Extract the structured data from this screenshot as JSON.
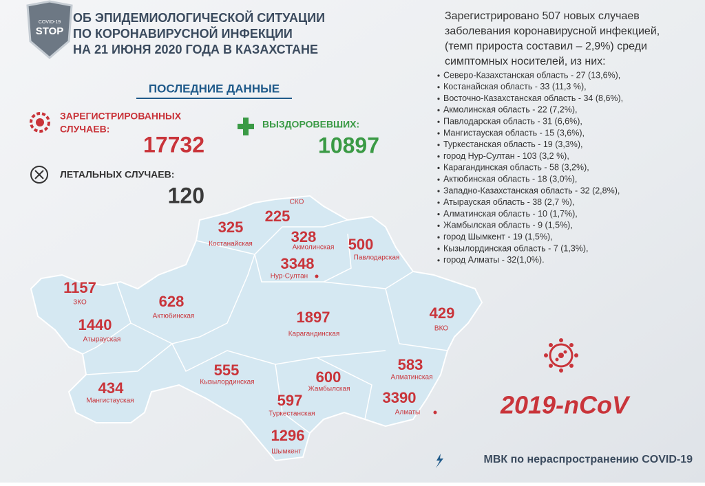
{
  "header": {
    "logo": [
      "COVID-19",
      "STOP"
    ],
    "title": [
      "ОБ ЭПИДЕМИОЛОГИЧЕСКОЙ СИТУАЦИИ",
      "ПО КОРОНАВИРУСНОЙ ИНФЕКЦИИ",
      "НА 21 ИЮНЯ 2020 ГОДА В КАЗАХСТАНЕ"
    ]
  },
  "stats": {
    "section_title": "ПОСЛЕДНИЕ ДАННЫЕ",
    "registered": {
      "label": [
        "ЗАРЕГИСТРИРОВАННЫХ",
        "СЛУЧАЕВ:"
      ],
      "value": 17732
    },
    "recovered": {
      "label": "ВЫЗДОРОВЕВШИХ:",
      "value": 10897
    },
    "deaths": {
      "label": "ЛЕТАЛЬНЫХ СЛУЧАЕВ:",
      "value": 120
    }
  },
  "summary": {
    "intro": [
      "Зарегистрировано 507 новых случаев",
      "заболевания коронавирусной инфекцией,",
      "(темп прироста составил – 2,9%) среди",
      "симптомных носителей, из них:"
    ],
    "items": [
      "Северо-Казахстанская   область - 27 (13,6%),",
      "Костанайская область  - 33 (11,3 %),",
      "Восточно-Казахстанская область - 34 (8,6%),",
      "Акмолинская область - 22 (7,2%),",
      "Павлодарская область - 31 (6,6%),",
      "Мангистауская область - 15 (3,6%),",
      "Туркестанская область - 19 (3,3%),",
      "город Нур-Султан - 103 (3,2 %),",
      "Карагандинская область - 58 (3,2%),",
      "Актюбинская область - 18 (3,0%),",
      "Западно-Казахстанская область - 32 (2,8%),",
      "Атырауская область - 38 (2,7 %),",
      "Алматинская область  - 10 (1,7%),",
      "Жамбылская область - 9 (1,5%),",
      "город Шымкент - 19 (1,5%),",
      "Кызылординская область - 7 (1,3%),",
      "город Алматы - 32(1,0%)."
    ]
  },
  "regions": [
    {
      "name": "СКО",
      "value": 225
    },
    {
      "name": "Костанайская",
      "value": 325
    },
    {
      "name": "Акмолинская",
      "value": 328
    },
    {
      "name": "Павлодарская",
      "value": 500
    },
    {
      "name": "Нур-Султан",
      "value": 3348
    },
    {
      "name": "ЗКО",
      "value": 1157
    },
    {
      "name": "Актюбинская",
      "value": 628
    },
    {
      "name": "Карагандинская",
      "value": 1897
    },
    {
      "name": "ВКО",
      "value": 429
    },
    {
      "name": "Атырауская",
      "value": 1440
    },
    {
      "name": "Алматинская",
      "value": 583
    },
    {
      "name": "Кызылординская",
      "value": 555
    },
    {
      "name": "Жамбылская",
      "value": 600
    },
    {
      "name": "Мангистауская",
      "value": 434
    },
    {
      "name": "Туркестанская",
      "value": 597
    },
    {
      "name": "Алматы",
      "value": 3390
    },
    {
      "name": "Шымкент",
      "value": 1296
    }
  ],
  "badge": "2019-nCoV",
  "footer": "МВК по нераспространению COVID-19"
}
